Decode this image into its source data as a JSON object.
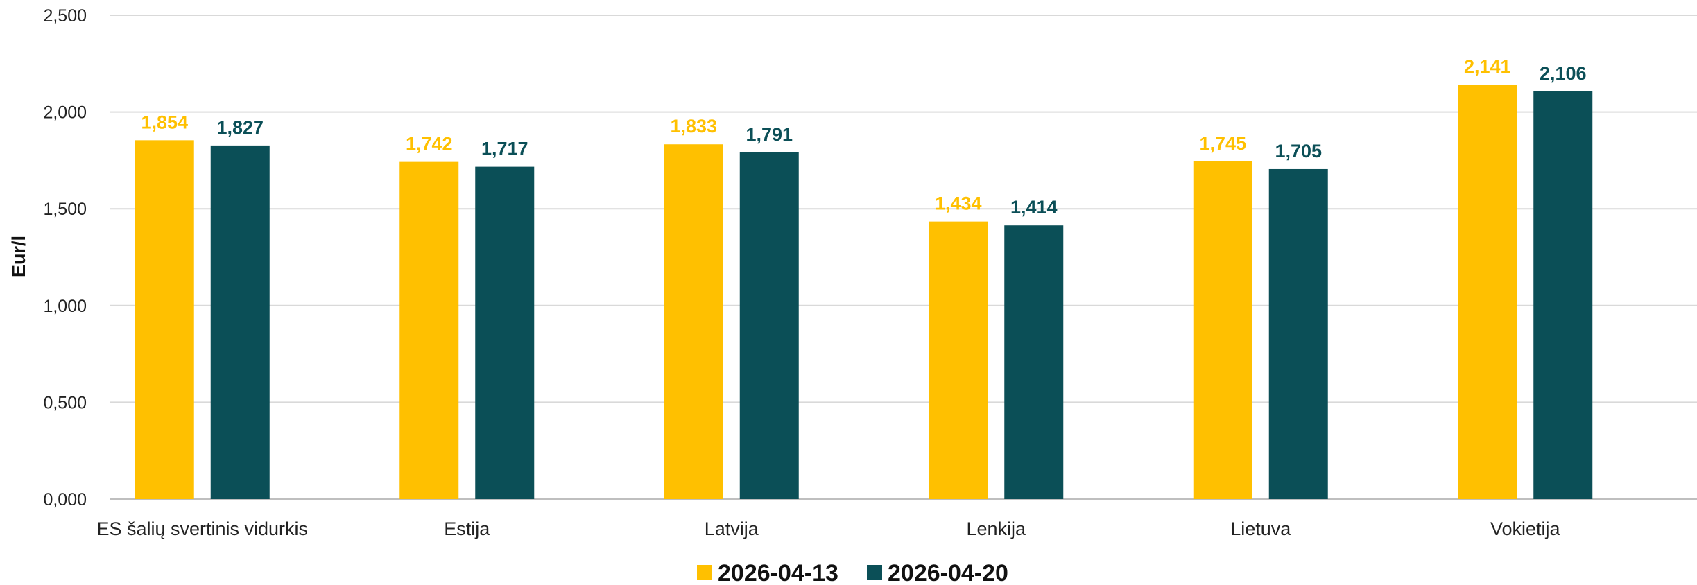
{
  "chart_data": {
    "type": "bar",
    "ylabel": "Eur/l",
    "ylim": [
      0,
      2.5
    ],
    "yticks": [
      0,
      0.5,
      1,
      1.5,
      2,
      2.5
    ],
    "ytick_labels": [
      "0,000",
      "0,500",
      "1,000",
      "1,500",
      "2,000",
      "2,500"
    ],
    "grid": true,
    "legend_position": "bottom",
    "categories": [
      "ES šalių svertinis vidurkis",
      "Estija",
      "Latvija",
      "Lenkija",
      "Lietuva",
      "Vokietija"
    ],
    "series": [
      {
        "name": "2026-04-13",
        "color": "#FFC000",
        "values": [
          1.854,
          1.742,
          1.833,
          1.434,
          1.745,
          2.141
        ],
        "labels": [
          "1,854",
          "1,742",
          "1,833",
          "1,434",
          "1,745",
          "2,141"
        ]
      },
      {
        "name": "2026-04-20",
        "color": "#0B4F57",
        "values": [
          1.827,
          1.717,
          1.791,
          1.414,
          1.705,
          2.106
        ],
        "labels": [
          "1,827",
          "1,717",
          "1,791",
          "1,414",
          "1,705",
          "2,106"
        ]
      }
    ]
  }
}
